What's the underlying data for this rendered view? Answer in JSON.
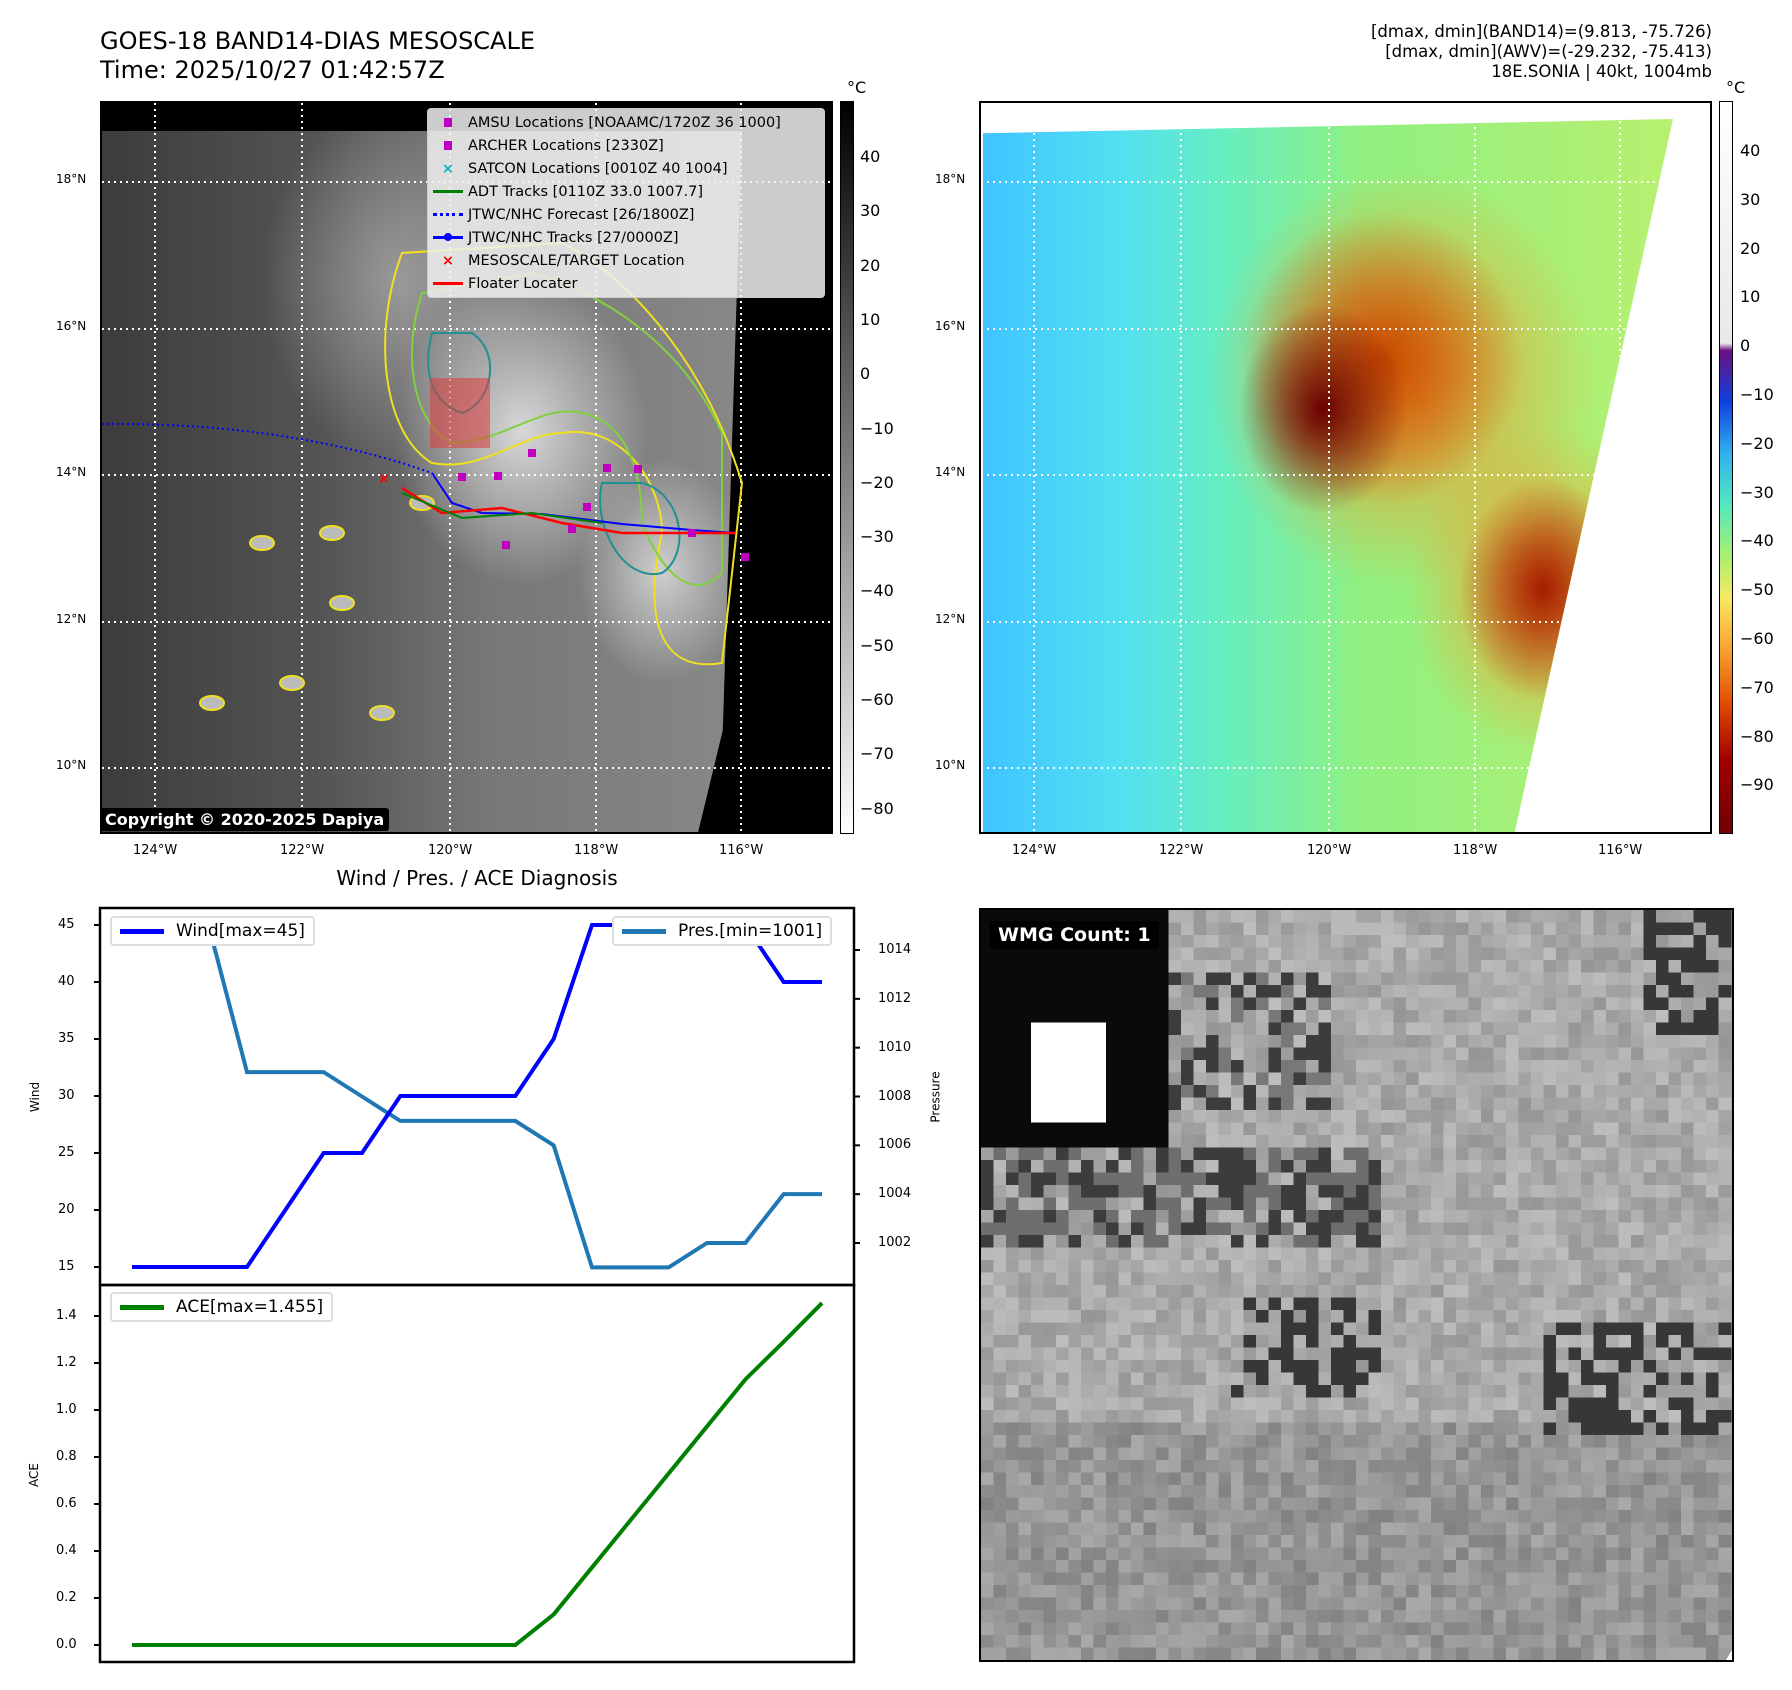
{
  "header": {
    "title": "GOES-18 BAND14-DIAS MESOSCALE",
    "time": "Time: 2025/10/27 01:42:57Z",
    "info": [
      "[dmax, dmin](BAND14)=(9.813, -75.726)",
      "[dmax, dmin](AWV)=(-29.232, -75.413)",
      "18E.SONIA | 40kt, 1004mb"
    ]
  },
  "map": {
    "lat_labels": [
      "18°N",
      "16°N",
      "14°N",
      "12°N",
      "10°N"
    ],
    "lon_labels": [
      "124°W",
      "122°W",
      "120°W",
      "118°W",
      "116°W"
    ],
    "copyright": "Copyright © 2020-2025 Dapiya",
    "legend": [
      "AMSU Locations [NOAAMC/1720Z 36 1000]",
      "ARCHER Locations [2330Z]",
      "SATCON Locations [0010Z 40 1004]",
      "ADT Tracks [0110Z 33.0 1007.7]",
      "JTWC/NHC Forecast [26/1800Z]",
      "JTWC/NHC Tracks [27/0000Z]",
      "MESOSCALE/TARGET Location",
      "Floater Locater"
    ]
  },
  "colorbar1": {
    "unit": "°C",
    "ticks": [
      "40",
      "30",
      "20",
      "10",
      "0",
      "−10",
      "−20",
      "−30",
      "−40",
      "−50",
      "−60",
      "−70",
      "−80"
    ]
  },
  "colorbar2": {
    "unit": "°C",
    "ticks": [
      "40",
      "30",
      "20",
      "10",
      "0",
      "−10",
      "−20",
      "−30",
      "−40",
      "−50",
      "−60",
      "−70",
      "−80",
      "−90"
    ]
  },
  "wmg": {
    "label": "WMG Count: 1"
  },
  "chart_data": [
    {
      "type": "line",
      "title": "Wind / Pres. / ACE Diagnosis",
      "ylabel": "Wind",
      "y2label": "Pressure",
      "ylim": [
        14,
        46
      ],
      "y2lim": [
        1000.1,
        1015.4
      ],
      "yticks": [
        "45",
        "40",
        "35",
        "30",
        "25",
        "20",
        "15"
      ],
      "y2ticks": [
        "1014",
        "1012",
        "1010",
        "1008",
        "1006",
        "1004",
        "1002"
      ],
      "series": [
        {
          "name": "Wind[max=45]",
          "color": "#0000ff",
          "values": [
            15,
            15,
            15,
            15,
            20,
            25,
            25,
            30,
            30,
            30,
            30,
            35,
            45,
            45,
            45,
            45,
            45,
            40,
            40
          ]
        },
        {
          "name": "Pres.[min=1001]",
          "color": "#1f77b4",
          "axis": "right",
          "values": [
            1015,
            1015,
            1015,
            1009,
            1009,
            1009,
            1008,
            1007,
            1007,
            1007,
            1007,
            1006,
            1001,
            1001,
            1001,
            1002,
            1002,
            1004,
            1004
          ]
        }
      ]
    },
    {
      "type": "line",
      "ylabel": "ACE",
      "ylim": [
        -0.07,
        1.53
      ],
      "yticks": [
        "1.4",
        "1.2",
        "1.0",
        "0.8",
        "0.6",
        "0.4",
        "0.2",
        "0.0"
      ],
      "series": [
        {
          "name": "ACE[max=1.455]",
          "color": "#008000",
          "values": [
            0,
            0,
            0,
            0,
            0,
            0,
            0,
            0,
            0,
            0,
            0,
            0.13,
            0.33,
            0.53,
            0.73,
            0.93,
            1.13,
            1.29,
            1.455
          ]
        }
      ]
    }
  ]
}
